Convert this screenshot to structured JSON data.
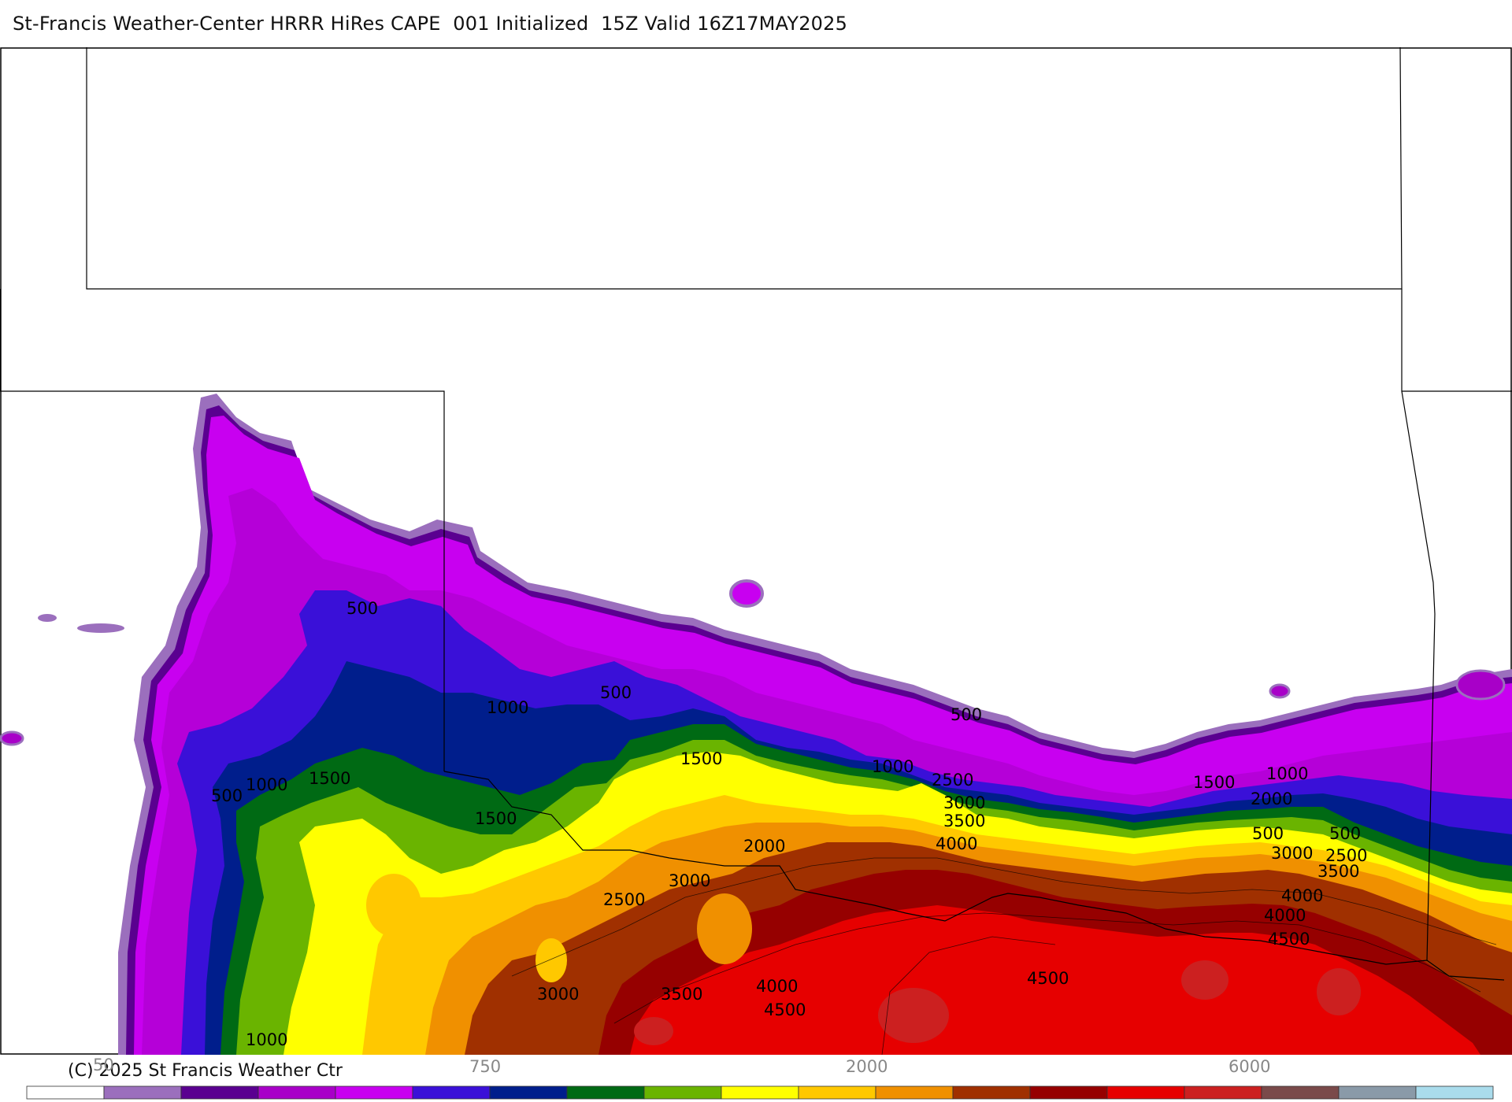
{
  "header": {
    "title": "St-Francis Weather-Center HRRR HiRes CAPE  001 Initialized  15Z Valid 16Z17MAY2025"
  },
  "footer": {
    "credit": "(C) 2025 St Francis Weather Ctr"
  },
  "legend": {
    "colors": [
      "#ffffff",
      "#9b6fbd",
      "#5a0090",
      "#a800c8",
      "#c800f0",
      "#3a10d8",
      "#001e8c",
      "#006a14",
      "#6ab400",
      "#ffff00",
      "#ffc800",
      "#f09000",
      "#a03000",
      "#960000",
      "#e60000",
      "#cc2020",
      "#7a4a4a",
      "#8a9aa8",
      "#aadcec"
    ],
    "tick_labels": [
      "50",
      "750",
      "2000",
      "6000"
    ]
  },
  "map": {
    "contour_labels": [
      "500",
      "500",
      "500",
      "500",
      "500",
      "500",
      "1000",
      "1000",
      "1000",
      "1000",
      "1000",
      "1000",
      "1500",
      "1500",
      "1500",
      "1500",
      "1500",
      "2000",
      "2000",
      "2500",
      "2500",
      "2500",
      "3000",
      "3000",
      "3000",
      "3000",
      "3000",
      "3500",
      "3500",
      "3500",
      "4000",
      "4000",
      "4000",
      "4000",
      "4500",
      "4500",
      "4500"
    ]
  }
}
